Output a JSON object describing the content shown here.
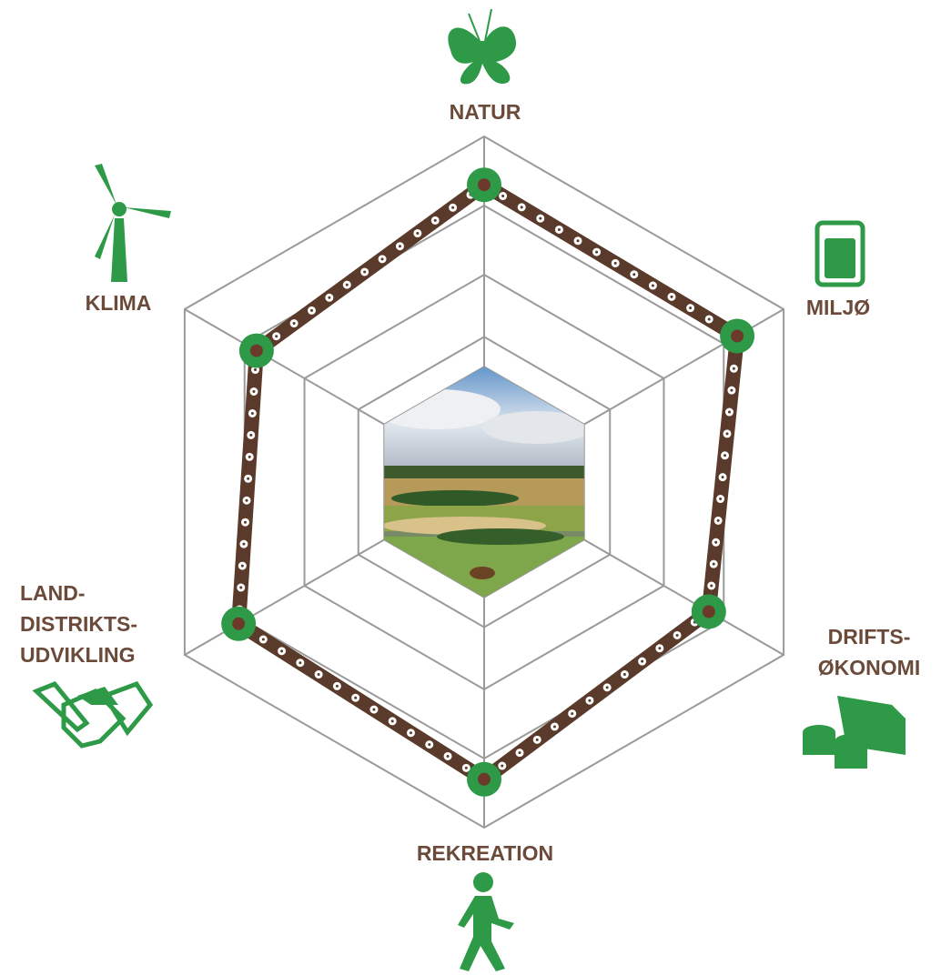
{
  "nodes": [
    {
      "lines": [
        "NATUR"
      ]
    },
    {
      "lines": [
        "MILJØ"
      ]
    },
    {
      "lines": [
        "DRIFTS-",
        "ØKONOMI"
      ]
    },
    {
      "lines": [
        "REKREATION"
      ]
    },
    {
      "lines": [
        "LAND-",
        "DISTRIKTS-",
        "UDVIKLING"
      ]
    },
    {
      "lines": [
        "KLIMA"
      ]
    }
  ]
}
